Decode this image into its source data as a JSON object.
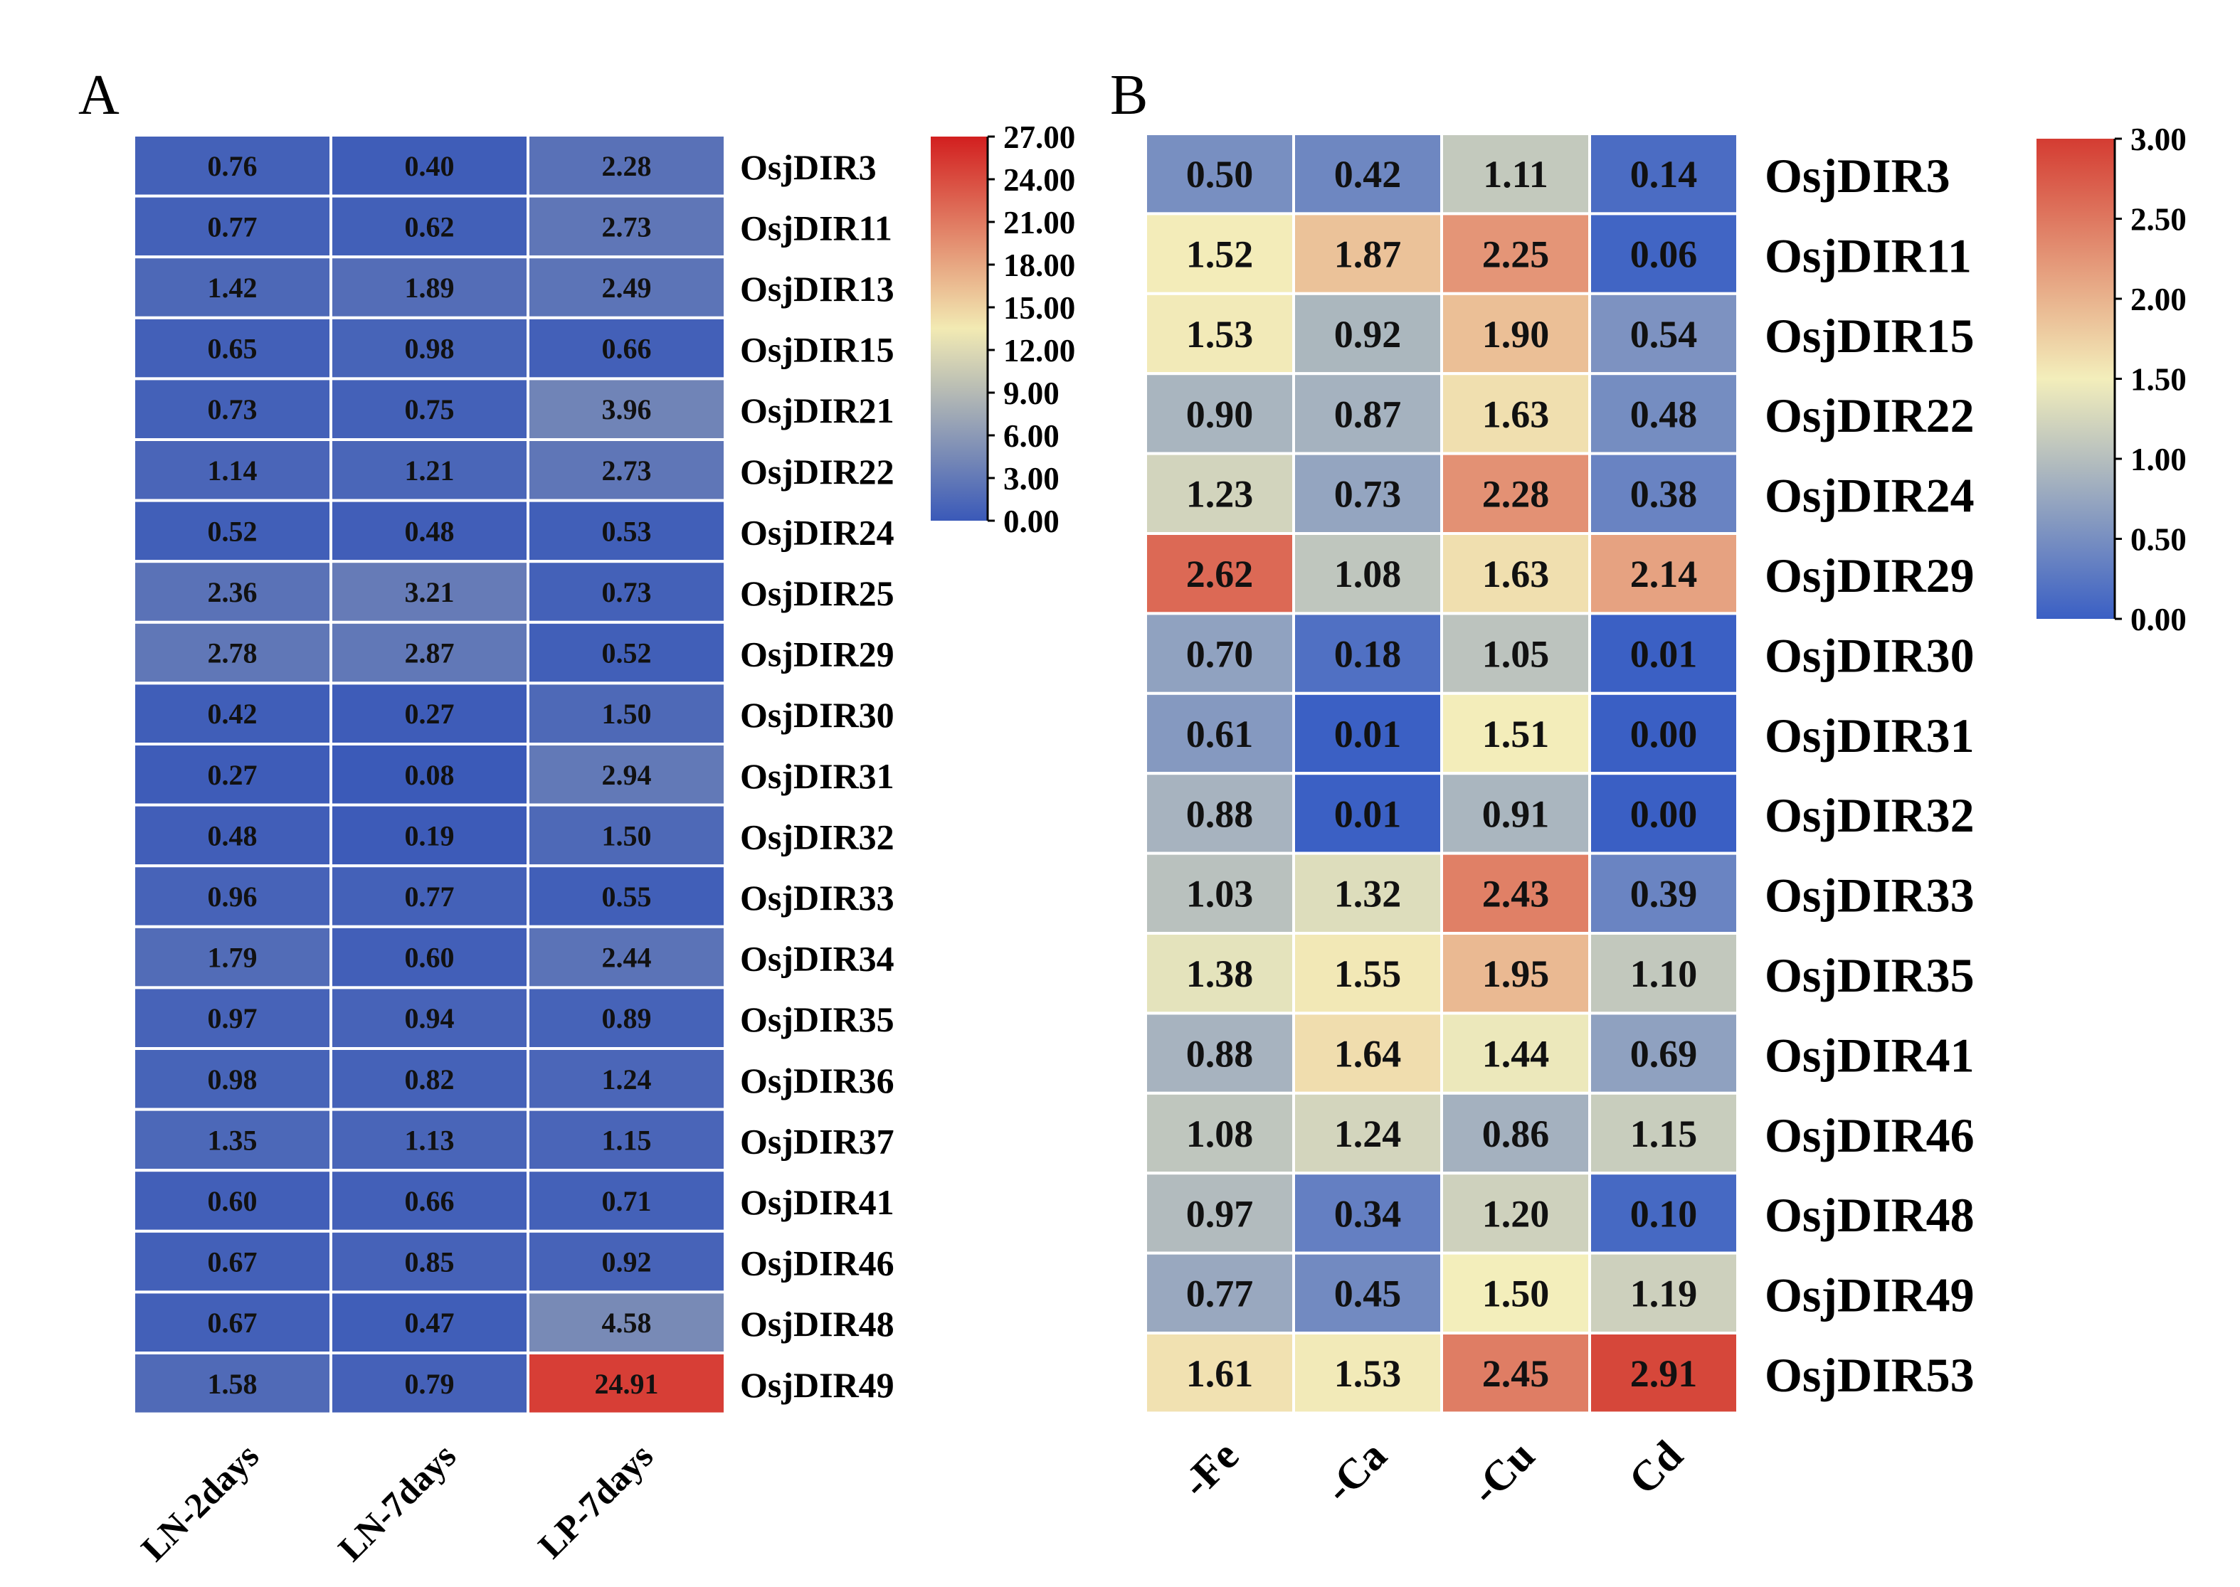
{
  "chart_data": [
    {
      "type": "heatmap",
      "panel_label": "A",
      "columns": [
        "LN-2days",
        "LN-7days",
        "LP-7days"
      ],
      "rows": [
        "OsjDIR3",
        "OsjDIR11",
        "OsjDIR13",
        "OsjDIR15",
        "OsjDIR21",
        "OsjDIR22",
        "OsjDIR24",
        "OsjDIR25",
        "OsjDIR29",
        "OsjDIR30",
        "OsjDIR31",
        "OsjDIR32",
        "OsjDIR33",
        "OsjDIR34",
        "OsjDIR35",
        "OsjDIR36",
        "OsjDIR37",
        "OsjDIR41",
        "OsjDIR46",
        "OsjDIR48",
        "OsjDIR49"
      ],
      "values": [
        [
          "0.76",
          "0.40",
          "2.28"
        ],
        [
          "0.77",
          "0.62",
          "2.73"
        ],
        [
          "1.42",
          "1.89",
          "2.49"
        ],
        [
          "0.65",
          "0.98",
          "0.66"
        ],
        [
          "0.73",
          "0.75",
          "3.96"
        ],
        [
          "1.14",
          "1.21",
          "2.73"
        ],
        [
          "0.52",
          "0.48",
          "0.53"
        ],
        [
          "2.36",
          "3.21",
          "0.73"
        ],
        [
          "2.78",
          "2.87",
          "0.52"
        ],
        [
          "0.42",
          "0.27",
          "1.50"
        ],
        [
          "0.27",
          "0.08",
          "2.94"
        ],
        [
          "0.48",
          "0.19",
          "1.50"
        ],
        [
          "0.96",
          "0.77",
          "0.55"
        ],
        [
          "1.79",
          "0.60",
          "2.44"
        ],
        [
          "0.97",
          "0.94",
          "0.89"
        ],
        [
          "0.98",
          "0.82",
          "1.24"
        ],
        [
          "1.35",
          "1.13",
          "1.15"
        ],
        [
          "0.60",
          "0.66",
          "0.71"
        ],
        [
          "0.67",
          "0.85",
          "0.92"
        ],
        [
          "0.67",
          "0.47",
          "4.58"
        ],
        [
          "1.58",
          "0.79",
          "24.91"
        ]
      ],
      "scale_min": 0,
      "scale_max": 27,
      "colorbar_ticks": [
        "27.00",
        "24.00",
        "21.00",
        "18.00",
        "15.00",
        "12.00",
        "9.00",
        "6.00",
        "3.00",
        "0.00"
      ],
      "color_stops": [
        "#3a59b8",
        "#f2eab3",
        "#d21f1f"
      ]
    },
    {
      "type": "heatmap",
      "panel_label": "B",
      "columns": [
        "-Fe",
        "-Ca",
        "-Cu",
        "Cd"
      ],
      "rows": [
        "OsjDIR3",
        "OsjDIR11",
        "OsjDIR15",
        "OsjDIR22",
        "OsjDIR24",
        "OsjDIR29",
        "OsjDIR30",
        "OsjDIR31",
        "OsjDIR32",
        "OsjDIR33",
        "OsjDIR35",
        "OsjDIR41",
        "OsjDIR46",
        "OsjDIR48",
        "OsjDIR49",
        "OsjDIR53"
      ],
      "values": [
        [
          "0.50",
          "0.42",
          "1.11",
          "0.14"
        ],
        [
          "1.52",
          "1.87",
          "2.25",
          "0.06"
        ],
        [
          "1.53",
          "0.92",
          "1.90",
          "0.54"
        ],
        [
          "0.90",
          "0.87",
          "1.63",
          "0.48"
        ],
        [
          "1.23",
          "0.73",
          "2.28",
          "0.38"
        ],
        [
          "2.62",
          "1.08",
          "1.63",
          "2.14"
        ],
        [
          "0.70",
          "0.18",
          "1.05",
          "0.01"
        ],
        [
          "0.61",
          "0.01",
          "1.51",
          "0.00"
        ],
        [
          "0.88",
          "0.01",
          "0.91",
          "0.00"
        ],
        [
          "1.03",
          "1.32",
          "2.43",
          "0.39"
        ],
        [
          "1.38",
          "1.55",
          "1.95",
          "1.10"
        ],
        [
          "0.88",
          "1.64",
          "1.44",
          "0.69"
        ],
        [
          "1.08",
          "1.24",
          "0.86",
          "1.15"
        ],
        [
          "0.97",
          "0.34",
          "1.20",
          "0.10"
        ],
        [
          "0.77",
          "0.45",
          "1.50",
          "1.19"
        ],
        [
          "1.61",
          "1.53",
          "2.45",
          "2.91"
        ]
      ],
      "scale_min": 0,
      "scale_max": 3,
      "colorbar_ticks": [
        "3.00",
        "2.50",
        "2.00",
        "1.50",
        "1.00",
        "0.50",
        "0.00"
      ],
      "color_stops": [
        "#3a5fc4",
        "#f3eebb",
        "#d43c32"
      ]
    }
  ]
}
